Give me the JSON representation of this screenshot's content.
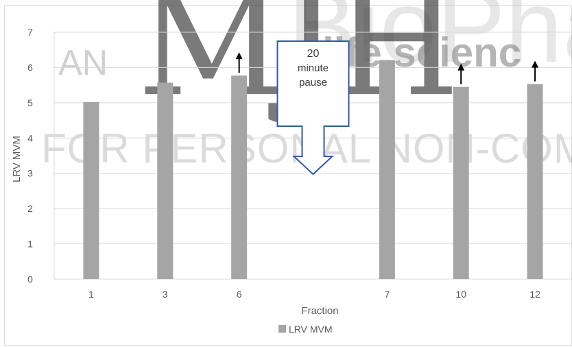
{
  "watermark": {
    "logo": "MJH",
    "brand": "BioPhar",
    "tagline": "life scienc",
    "an": "AN",
    "notice": "FOR PERSONAL NON-COM"
  },
  "chart_data": {
    "type": "bar",
    "categories": [
      "1",
      "3",
      "6",
      "",
      "7",
      "10",
      "12"
    ],
    "series": [
      {
        "name": "LRV MVM",
        "values": [
          5.02,
          5.57,
          5.77,
          null,
          6.21,
          5.45,
          5.53
        ]
      }
    ],
    "xlabel": "Fraction",
    "ylabel": "LRV MVM",
    "ylim": [
      0,
      7
    ],
    "yticks": [
      0,
      1,
      2,
      3,
      4,
      5,
      6,
      7
    ],
    "grid": true,
    "legend": "bottom",
    "bar_color": "#a5a5a5",
    "arrows_up_on": [
      "6",
      "10",
      "12"
    ],
    "annotation": {
      "lines": [
        "20",
        "minute",
        "pause"
      ],
      "color": "#2e5ca8"
    }
  }
}
